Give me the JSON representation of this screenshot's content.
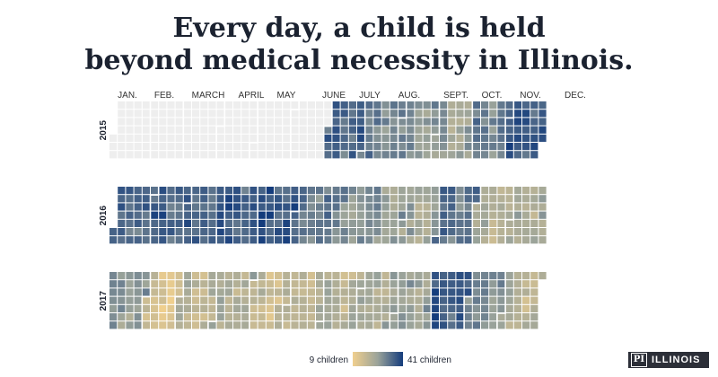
{
  "title": {
    "line1": "Every day, a child is held",
    "line2": "beyond medical necessity in Illinois."
  },
  "logo": {
    "mark": "PI",
    "word": "ILLINOIS"
  },
  "colors": {
    "low": "#f0cf8e",
    "mid": "#9aa39a",
    "high": "#143c7c",
    "no_data": "#eeeeee",
    "month_border": "#ffffff"
  },
  "chart_data": {
    "type": "heatmap",
    "title": "Every day, a child is held beyond medical necessity in Illinois.",
    "months": [
      "JAN.",
      "FEB.",
      "MARCH",
      "APRIL",
      "MAY",
      "JUNE",
      "JULY",
      "AUG.",
      "SEPT.",
      "OCT.",
      "NOV.",
      "DEC."
    ],
    "years": [
      "2015",
      "2016",
      "2017"
    ],
    "data_start_2015": "July",
    "value_range": [
      9,
      41
    ],
    "legend": {
      "min_label": "9 children",
      "max_label": "41 children"
    },
    "series": [
      {
        "name": "2015",
        "monthly_level": [
          null,
          null,
          null,
          null,
          null,
          null,
          34,
          30,
          27,
          24,
          30,
          36
        ]
      },
      {
        "name": "2016",
        "monthly_level": [
          34,
          35,
          34,
          35,
          37,
          31,
          28,
          26,
          23,
          32,
          21,
          22
        ]
      },
      {
        "name": "2017",
        "monthly_level": [
          26,
          14,
          19,
          21,
          17,
          19,
          20,
          23,
          25,
          36,
          29,
          20
        ]
      }
    ]
  }
}
